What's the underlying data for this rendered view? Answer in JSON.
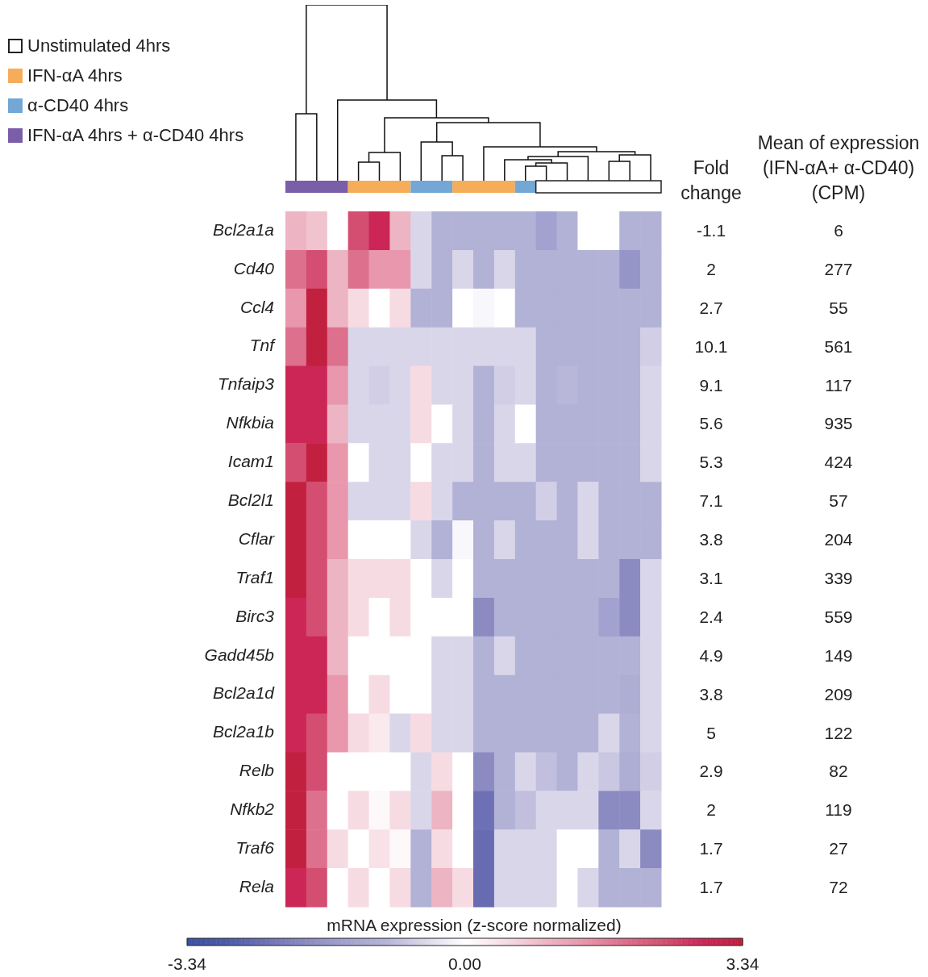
{
  "chart_data": [
    {
      "type": "heatmap",
      "categories": [
        null,
        null,
        null,
        null,
        null,
        null,
        null,
        null,
        null,
        null,
        null,
        null,
        null,
        null,
        null,
        null,
        null,
        null
      ],
      "y_categories": [
        "Bcl2a1a",
        "Cd40",
        "Ccl4",
        "Tnf",
        "Tnfaip3",
        "Nfkbia",
        "Icam1",
        "Bcl2l1",
        "Cflar",
        "Traf1",
        "Birc3",
        "Gadd45b",
        "Bcl2a1d",
        "Bcl2a1b",
        "Relb",
        "Nfkb2",
        "Traf6",
        "Rela"
      ],
      "cells": [
        [
          1.0,
          0.8,
          0,
          2.4,
          2.9,
          1.0,
          -0.5,
          -1.0,
          -1.0,
          -1.0,
          -1.0,
          -1.0,
          -1.4,
          -1.0,
          0,
          0,
          -1.0,
          -1.0
        ],
        [
          1.9,
          2.4,
          1.0,
          1.9,
          1.4,
          1.4,
          -0.5,
          -1.0,
          -0.5,
          -1.0,
          -0.5,
          -1.0,
          -1.0,
          -1.0,
          -1.0,
          -1.0,
          -1.7,
          -1.0
        ],
        [
          1.4,
          3.3,
          1.0,
          0.5,
          0,
          0.5,
          -1.0,
          -1.0,
          0,
          -0.1,
          0,
          -1.0,
          -1.0,
          -1.0,
          -1.0,
          -1.0,
          -1.0,
          -1.0
        ],
        [
          1.9,
          3.3,
          1.9,
          -0.5,
          -0.5,
          -0.5,
          -0.5,
          -0.5,
          -0.5,
          -0.5,
          -0.5,
          -0.5,
          -1.0,
          -1.0,
          -1.0,
          -1.0,
          -1.0,
          -0.6
        ],
        [
          2.9,
          2.9,
          1.4,
          -0.5,
          -0.6,
          -0.5,
          0.5,
          -0.5,
          -0.5,
          -1.0,
          -0.6,
          -0.5,
          -1.0,
          -0.9,
          -1.0,
          -1.0,
          -1.0,
          -0.5
        ],
        [
          2.9,
          2.9,
          1.0,
          -0.5,
          -0.5,
          -0.5,
          0.5,
          0,
          -0.5,
          -1.0,
          -0.5,
          0,
          -1.0,
          -1.0,
          -1.0,
          -1.0,
          -1.0,
          -0.5
        ],
        [
          2.4,
          3.3,
          1.4,
          0,
          -0.5,
          -0.5,
          0,
          -0.5,
          -0.5,
          -1.0,
          -0.5,
          -0.5,
          -1.0,
          -1.0,
          -1.0,
          -1.0,
          -1.0,
          -0.5
        ],
        [
          3.3,
          2.4,
          1.4,
          -0.5,
          -0.5,
          -0.5,
          0.5,
          -0.5,
          -1.0,
          -1.0,
          -1.0,
          -1.0,
          -0.6,
          -1.0,
          -0.5,
          -1.0,
          -1.0,
          -1.0
        ],
        [
          3.3,
          2.4,
          1.4,
          0,
          0,
          0,
          -0.5,
          -1.0,
          -0.1,
          -1.0,
          -0.5,
          -1.0,
          -1.0,
          -1.0,
          -0.5,
          -1.0,
          -1.0,
          -1.0
        ],
        [
          3.3,
          2.4,
          1.0,
          0.5,
          0.5,
          0.5,
          0,
          -0.5,
          0,
          -1.0,
          -1.0,
          -1.0,
          -1.0,
          -1.0,
          -1.0,
          -1.0,
          -1.9,
          -0.5
        ],
        [
          2.9,
          2.4,
          1.0,
          0.5,
          0,
          0.5,
          0,
          0,
          0,
          -1.9,
          -1.0,
          -1.0,
          -1.0,
          -1.0,
          -1.0,
          -1.4,
          -1.9,
          -0.5
        ],
        [
          2.9,
          2.9,
          1.0,
          0,
          0,
          0,
          0,
          -0.5,
          -0.5,
          -1.0,
          -0.5,
          -1.0,
          -1.0,
          -1.0,
          -1.0,
          -1.0,
          -1.0,
          -0.5
        ],
        [
          2.9,
          2.9,
          1.4,
          0,
          0.5,
          0,
          0,
          -0.5,
          -0.5,
          -1.0,
          -1.0,
          -1.0,
          -1.0,
          -1.0,
          -1.0,
          -1.0,
          -1.1,
          -0.5
        ],
        [
          2.9,
          2.4,
          1.4,
          0.5,
          0.3,
          -0.5,
          0.5,
          -0.5,
          -0.5,
          -1.0,
          -1.0,
          -1.0,
          -1.0,
          -1.0,
          -1.0,
          -0.5,
          -1.0,
          -0.5
        ],
        [
          3.3,
          2.4,
          0,
          0,
          0,
          0,
          -0.5,
          0.5,
          0,
          -1.9,
          -1.0,
          -0.5,
          -0.8,
          -1.0,
          -0.5,
          -0.7,
          -1.1,
          -0.6
        ],
        [
          3.3,
          1.9,
          0,
          0.5,
          0.1,
          0.5,
          -0.5,
          1.0,
          0,
          -2.4,
          -1.0,
          -0.8,
          -0.5,
          -0.5,
          -0.5,
          -1.9,
          -1.9,
          -0.5
        ],
        [
          3.3,
          1.9,
          0.5,
          0,
          0.4,
          0.1,
          -1.0,
          0.5,
          0,
          -2.5,
          -0.5,
          -0.5,
          -0.5,
          0,
          0,
          -1.0,
          -0.5,
          -1.9
        ],
        [
          2.9,
          2.4,
          0,
          0.5,
          0,
          0.5,
          -1.0,
          1.0,
          0.5,
          -2.5,
          -0.5,
          -0.5,
          -0.5,
          0,
          -0.5,
          -1.0,
          -1.0,
          -1.0
        ]
      ],
      "clim": [
        -3.34,
        3.34
      ],
      "cticks": [
        -3.34,
        {
          "value": 0,
          "label": "0.00"
        },
        3.34
      ],
      "clabel": "mRNA expression (z-score normalized)",
      "colors": [
        "#7b5ea8",
        "#7b5ea8",
        "#7b5ea8",
        "#f5ad5a",
        "#f5ad5a",
        "#f5ad5a",
        "#72a7d6",
        "#72a7d6",
        "#f5ad5a",
        "#f5ad5a",
        "#f5ad5a",
        "#72a7d6",
        "#ffffff",
        "#ffffff",
        "#ffffff",
        "#ffffff",
        "#ffffff",
        "#ffffff"
      ],
      "grid": false,
      "tick_labels": "y"
    },
    {
      "type": "other",
      "annotations": [
        "Unstimulated 4hrs",
        "IFN-αA 4hrs",
        "α-CD40 4hrs",
        "IFN-αA 4hrs + α-CD40 4hrs"
      ],
      "colors": [
        "#ffffff",
        "#f5ad5a",
        "#72a7d6",
        "#7b5ea8"
      ]
    },
    {
      "type": "other",
      "title": "Fold change",
      "annotations": [
        "-1.1",
        "2",
        "2.7",
        "10.1",
        "9.1",
        "5.6",
        "5.3",
        "7.1",
        "3.8",
        "3.1",
        "2.4",
        "4.9",
        "3.8",
        "5",
        "2.9",
        "2",
        "1.7",
        "1.7"
      ]
    },
    {
      "type": "other",
      "title": "Mean of expression (IFN-αA+ α-CD40) (CPM)",
      "annotations": [
        "6",
        "277",
        "55",
        "561",
        "117",
        "935",
        "424",
        "57",
        "204",
        "339",
        "559",
        "149",
        "209",
        "122",
        "82",
        "119",
        "27",
        "72"
      ]
    }
  ]
}
